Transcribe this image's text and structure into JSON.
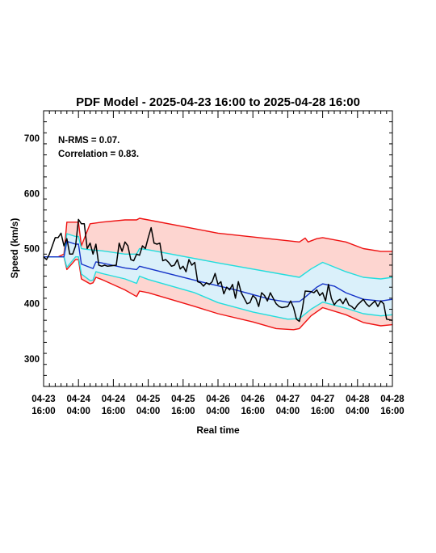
{
  "chart_data": {
    "type": "line",
    "title": "PDF Model - 2025-04-23 16:00 to 2025-04-28 16:00",
    "xlabel": "Real time",
    "ylabel": "Speed (km/s)",
    "ylim": [
      250,
      750
    ],
    "yticks": [
      300,
      400,
      500,
      600,
      700
    ],
    "xlim": [
      0,
      120
    ],
    "xticks": [
      {
        "t": 0,
        "date": "04-23",
        "time": "16:00"
      },
      {
        "t": 12,
        "date": "04-24",
        "time": "04:00"
      },
      {
        "t": 24,
        "date": "04-24",
        "time": "16:00"
      },
      {
        "t": 36,
        "date": "04-25",
        "time": "04:00"
      },
      {
        "t": 48,
        "date": "04-25",
        "time": "16:00"
      },
      {
        "t": 60,
        "date": "04-26",
        "time": "04:00"
      },
      {
        "t": 72,
        "date": "04-26",
        "time": "16:00"
      },
      {
        "t": 84,
        "date": "04-27",
        "time": "04:00"
      },
      {
        "t": 96,
        "date": "04-27",
        "time": "16:00"
      },
      {
        "t": 108,
        "date": "04-28",
        "time": "04:00"
      },
      {
        "t": 120,
        "date": "04-28",
        "time": "16:00"
      }
    ],
    "annotations": [
      "N-RMS = 0.07.",
      "Correlation = 0.83."
    ],
    "grid": false,
    "colors": {
      "outer_band": "#fdd5d0",
      "inner_band": "#daf0fa",
      "outer_line": "#ee1111",
      "inner_line": "#22dddd",
      "median": "#1533c8",
      "observed": "#000000"
    },
    "series": [
      {
        "role": "outer_upper",
        "points": [
          [
            0,
            485
          ],
          [
            5,
            485
          ],
          [
            7,
            490
          ],
          [
            8,
            548
          ],
          [
            12,
            548
          ],
          [
            13,
            505
          ],
          [
            16,
            545
          ],
          [
            20,
            548
          ],
          [
            28,
            552
          ],
          [
            32,
            552
          ],
          [
            33,
            555
          ],
          [
            36,
            552
          ],
          [
            60,
            528
          ],
          [
            88,
            512
          ],
          [
            90,
            519
          ],
          [
            91,
            512
          ],
          [
            94,
            518
          ],
          [
            96,
            520
          ],
          [
            104,
            512
          ],
          [
            110,
            500
          ],
          [
            116,
            495
          ],
          [
            120,
            495
          ]
        ]
      },
      {
        "role": "inner_upper",
        "points": [
          [
            0,
            485
          ],
          [
            7,
            485
          ],
          [
            8,
            527
          ],
          [
            11,
            522
          ],
          [
            12,
            522
          ],
          [
            13,
            500
          ],
          [
            16,
            498
          ],
          [
            20,
            496
          ],
          [
            28,
            490
          ],
          [
            32,
            490
          ],
          [
            33,
            500
          ],
          [
            36,
            498
          ],
          [
            60,
            474
          ],
          [
            88,
            448
          ],
          [
            92,
            463
          ],
          [
            96,
            475
          ],
          [
            104,
            458
          ],
          [
            110,
            448
          ],
          [
            116,
            445
          ],
          [
            120,
            448
          ]
        ]
      },
      {
        "role": "median",
        "points": [
          [
            0,
            485
          ],
          [
            7,
            485
          ],
          [
            8,
            513
          ],
          [
            11,
            508
          ],
          [
            12,
            508
          ],
          [
            13,
            472
          ],
          [
            17,
            464
          ],
          [
            18,
            476
          ],
          [
            20,
            474
          ],
          [
            28,
            465
          ],
          [
            32,
            462
          ],
          [
            33,
            468
          ],
          [
            36,
            464
          ],
          [
            54,
            440
          ],
          [
            66,
            425
          ],
          [
            78,
            408
          ],
          [
            84,
            403
          ],
          [
            88,
            404
          ],
          [
            90,
            412
          ],
          [
            94,
            430
          ],
          [
            96,
            436
          ],
          [
            100,
            432
          ],
          [
            104,
            420
          ],
          [
            110,
            408
          ],
          [
            116,
            405
          ],
          [
            120,
            408
          ]
        ]
      },
      {
        "role": "inner_lower",
        "points": [
          [
            0,
            485
          ],
          [
            7,
            485
          ],
          [
            8,
            466
          ],
          [
            11,
            485
          ],
          [
            12,
            485
          ],
          [
            13,
            454
          ],
          [
            16,
            442
          ],
          [
            17,
            443
          ],
          [
            18,
            458
          ],
          [
            20,
            455
          ],
          [
            28,
            445
          ],
          [
            32,
            437
          ],
          [
            33,
            450
          ],
          [
            36,
            444
          ],
          [
            52,
            420
          ],
          [
            60,
            402
          ],
          [
            72,
            385
          ],
          [
            84,
            372
          ],
          [
            88,
            373
          ],
          [
            92,
            390
          ],
          [
            96,
            403
          ],
          [
            104,
            392
          ],
          [
            110,
            382
          ],
          [
            116,
            378
          ],
          [
            120,
            380
          ]
        ]
      },
      {
        "role": "outer_lower",
        "points": [
          [
            0,
            485
          ],
          [
            7,
            485
          ],
          [
            8,
            462
          ],
          [
            11,
            480
          ],
          [
            12,
            480
          ],
          [
            13,
            445
          ],
          [
            16,
            436
          ],
          [
            17,
            438
          ],
          [
            18,
            448
          ],
          [
            20,
            444
          ],
          [
            28,
            425
          ],
          [
            32,
            413
          ],
          [
            33,
            423
          ],
          [
            36,
            420
          ],
          [
            52,
            395
          ],
          [
            60,
            382
          ],
          [
            72,
            367
          ],
          [
            80,
            355
          ],
          [
            86,
            353
          ],
          [
            88,
            355
          ],
          [
            92,
            378
          ],
          [
            96,
            393
          ],
          [
            104,
            380
          ],
          [
            110,
            366
          ],
          [
            116,
            360
          ],
          [
            120,
            362
          ]
        ]
      },
      {
        "role": "observed",
        "points": [
          [
            0,
            485
          ],
          [
            1,
            480
          ],
          [
            2,
            490
          ],
          [
            4,
            520
          ],
          [
            5,
            520
          ],
          [
            6,
            528
          ],
          [
            7,
            505
          ],
          [
            8,
            518
          ],
          [
            9,
            490
          ],
          [
            10,
            490
          ],
          [
            11,
            505
          ],
          [
            12,
            553
          ],
          [
            13,
            545
          ],
          [
            14,
            545
          ],
          [
            15,
            500
          ],
          [
            16,
            510
          ],
          [
            17,
            490
          ],
          [
            18,
            508
          ],
          [
            19,
            470
          ],
          [
            20,
            468
          ],
          [
            21,
            470
          ],
          [
            22,
            468
          ],
          [
            25,
            470
          ],
          [
            26,
            510
          ],
          [
            27,
            495
          ],
          [
            28,
            512
          ],
          [
            29,
            505
          ],
          [
            30,
            480
          ],
          [
            31,
            478
          ],
          [
            32,
            490
          ],
          [
            33,
            488
          ],
          [
            34,
            505
          ],
          [
            35,
            500
          ],
          [
            36,
            520
          ],
          [
            37,
            538
          ],
          [
            38,
            510
          ],
          [
            39,
            508
          ],
          [
            40,
            510
          ],
          [
            41,
            478
          ],
          [
            42,
            480
          ],
          [
            43,
            475
          ],
          [
            44,
            468
          ],
          [
            45,
            470
          ],
          [
            46,
            480
          ],
          [
            47,
            463
          ],
          [
            48,
            468
          ],
          [
            49,
            458
          ],
          [
            50,
            480
          ],
          [
            51,
            470
          ],
          [
            52,
            475
          ],
          [
            53,
            440
          ],
          [
            54,
            438
          ],
          [
            55,
            432
          ],
          [
            56,
            438
          ],
          [
            57,
            435
          ],
          [
            58,
            440
          ],
          [
            59,
            455
          ],
          [
            60,
            435
          ],
          [
            61,
            440
          ],
          [
            62,
            418
          ],
          [
            63,
            430
          ],
          [
            64,
            425
          ],
          [
            65,
            435
          ],
          [
            66,
            410
          ],
          [
            67,
            440
          ],
          [
            68,
            420
          ],
          [
            69,
            410
          ],
          [
            70,
            400
          ],
          [
            71,
            402
          ],
          [
            72,
            415
          ],
          [
            73,
            410
          ],
          [
            74,
            395
          ],
          [
            75,
            420
          ],
          [
            76,
            415
          ],
          [
            77,
            405
          ],
          [
            78,
            420
          ],
          [
            80,
            400
          ],
          [
            81,
            395
          ],
          [
            82,
            393
          ],
          [
            84,
            395
          ],
          [
            85,
            405
          ],
          [
            86,
            393
          ],
          [
            87,
            372
          ],
          [
            88,
            368
          ],
          [
            89,
            390
          ],
          [
            90,
            423
          ],
          [
            92,
            422
          ],
          [
            93,
            420
          ],
          [
            94,
            425
          ],
          [
            95,
            415
          ],
          [
            96,
            420
          ],
          [
            97,
            405
          ],
          [
            98,
            435
          ],
          [
            99,
            410
          ],
          [
            100,
            398
          ],
          [
            101,
            405
          ],
          [
            102,
            408
          ],
          [
            103,
            400
          ],
          [
            104,
            410
          ],
          [
            105,
            398
          ],
          [
            106,
            395
          ],
          [
            107,
            390
          ],
          [
            108,
            398
          ],
          [
            109,
            403
          ],
          [
            110,
            408
          ],
          [
            111,
            400
          ],
          [
            112,
            395
          ],
          [
            113,
            400
          ],
          [
            114,
            405
          ],
          [
            115,
            395
          ],
          [
            116,
            405
          ],
          [
            117,
            400
          ],
          [
            118,
            372
          ],
          [
            120,
            370
          ]
        ]
      }
    ]
  }
}
